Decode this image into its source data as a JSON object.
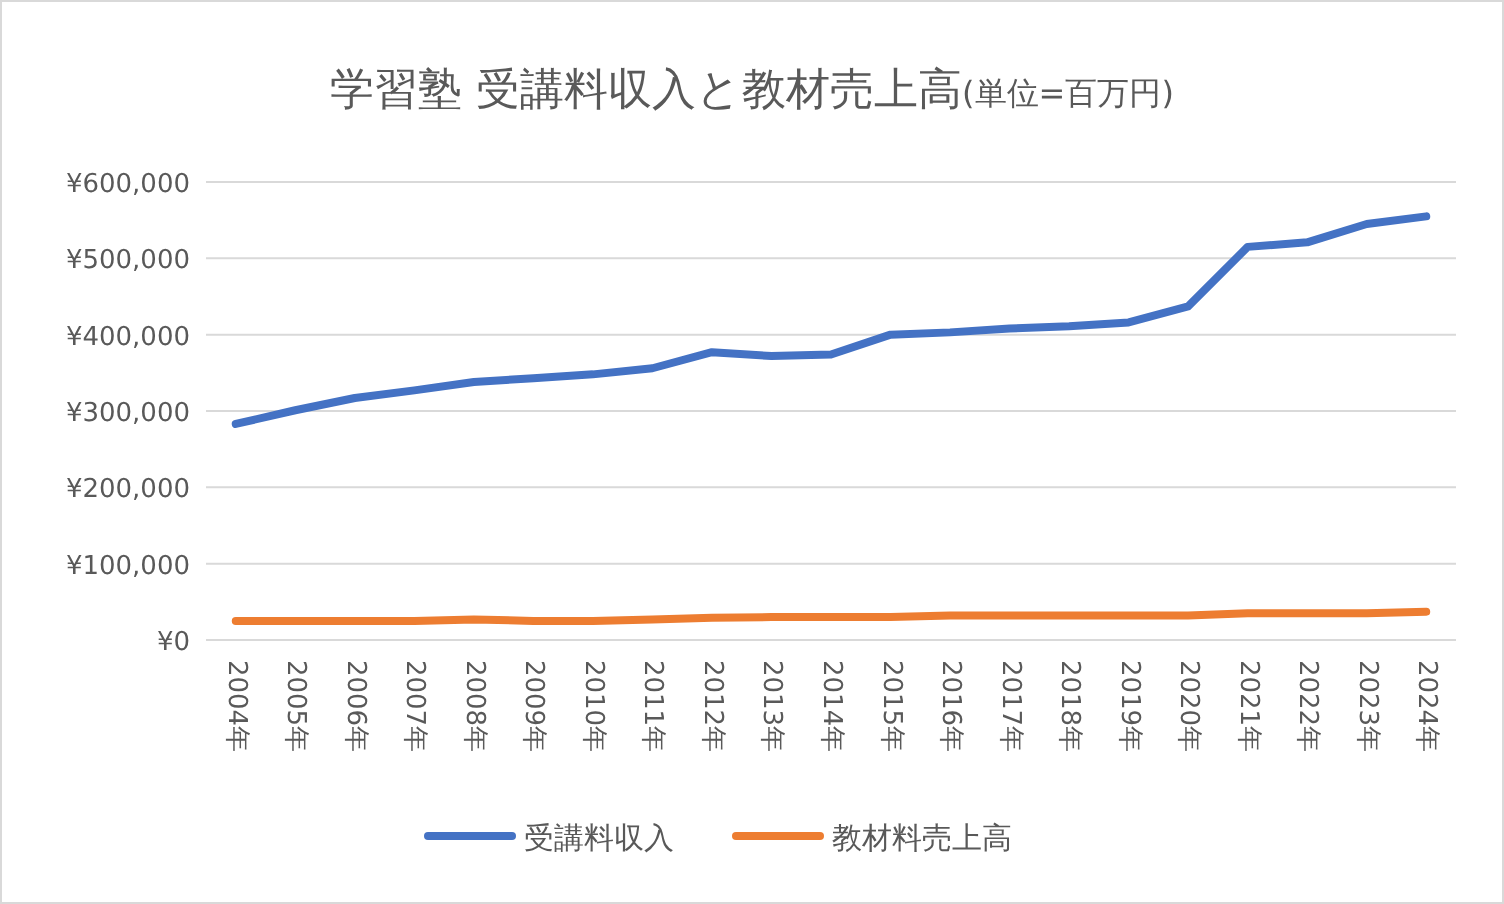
{
  "chart_data": {
    "type": "line",
    "title": "学習塾 受講料収入と教材売上高",
    "subtitle": "(単位=百万円)",
    "categories": [
      "2004年",
      "2005年",
      "2006年",
      "2007年",
      "2008年",
      "2009年",
      "2010年",
      "2011年",
      "2012年",
      "2013年",
      "2014年",
      "2015年",
      "2016年",
      "2017年",
      "2018年",
      "2019年",
      "2020年",
      "2021年",
      "2022年",
      "2023年",
      "2024年"
    ],
    "series": [
      {
        "name": "受講料収入",
        "color": "#4472c4",
        "values": [
          283000,
          301000,
          317000,
          327000,
          338000,
          343000,
          348000,
          356000,
          377000,
          372000,
          374000,
          400000,
          403000,
          408000,
          411000,
          416000,
          437000,
          515000,
          521000,
          545000,
          555000
        ]
      },
      {
        "name": "教材料売上高",
        "color": "#ed7d31",
        "values": [
          25000,
          25000,
          25000,
          25000,
          27000,
          25000,
          25000,
          27000,
          29000,
          30000,
          30000,
          30000,
          32000,
          32000,
          32000,
          32000,
          32000,
          35000,
          35000,
          35000,
          37000
        ]
      }
    ],
    "ylim": [
      0,
      600000
    ],
    "yticks": [
      {
        "value": 0,
        "label": "¥0"
      },
      {
        "value": 100000,
        "label": "¥100,000"
      },
      {
        "value": 200000,
        "label": "¥200,000"
      },
      {
        "value": 300000,
        "label": "¥300,000"
      },
      {
        "value": 400000,
        "label": "¥400,000"
      },
      {
        "value": 500000,
        "label": "¥500,000"
      },
      {
        "value": 600000,
        "label": "¥600,000"
      }
    ],
    "grid": "y",
    "legend": "bottom",
    "marker": "none",
    "line_style": "solid"
  }
}
